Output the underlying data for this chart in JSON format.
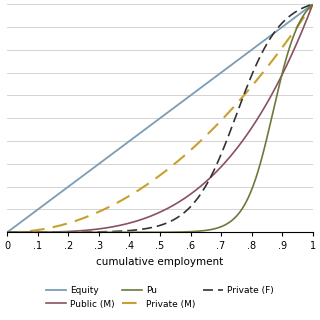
{
  "xlabel": "cumulative employment",
  "xlim": [
    0,
    1
  ],
  "ylim": [
    0,
    1
  ],
  "xticks": [
    0,
    0.1,
    0.2,
    0.3,
    0.4,
    0.5,
    0.6,
    0.7,
    0.8,
    0.9,
    1.0
  ],
  "xticklabels": [
    "0",
    ".1",
    ".2",
    ".3",
    ".4",
    ".5",
    ".6",
    ".7",
    ".8",
    ".9",
    "1"
  ],
  "equity_color": "#7a9db5",
  "public_m_color": "#8b5060",
  "public_f_color": "#6b7a3a",
  "private_m_color": "#c8a030",
  "private_f_color": "#333333",
  "plot_bg_color": "#ffffff",
  "grid_color": "#cccccc",
  "fig_bg_color": "#ffffff"
}
